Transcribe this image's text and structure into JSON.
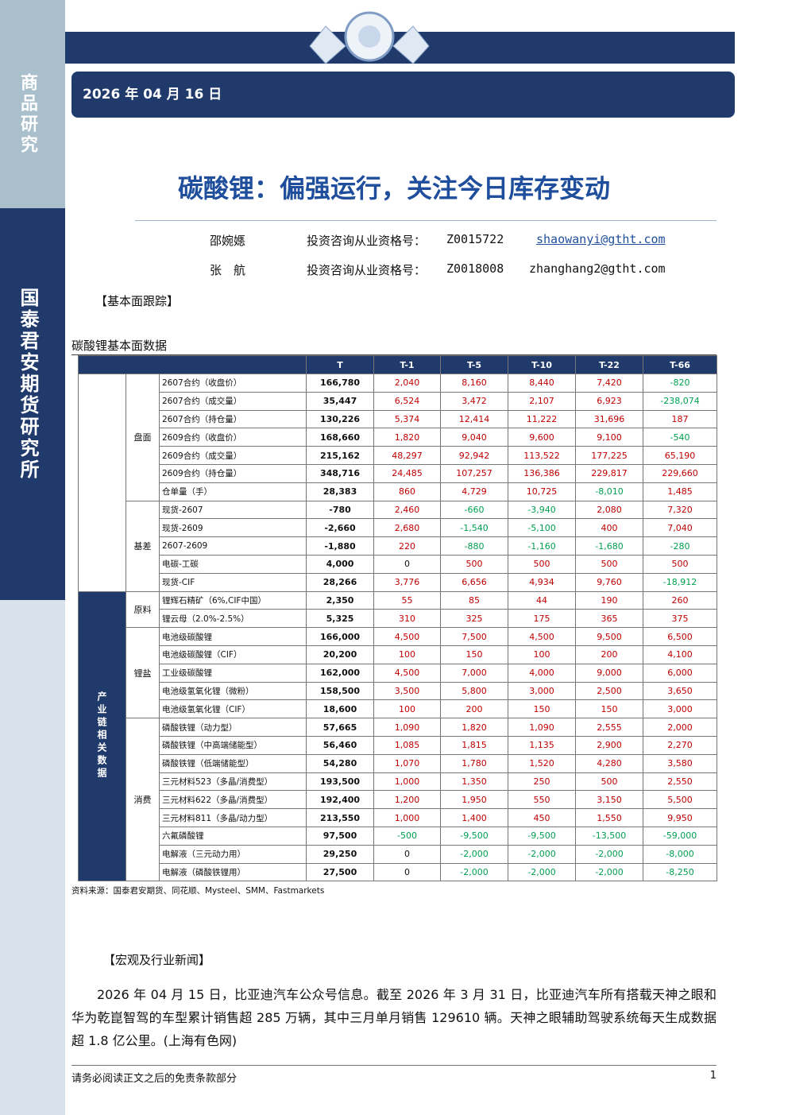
{
  "sidebar": {
    "top": "商品研究",
    "bottom": "国泰君安期货研究所"
  },
  "header": {
    "date": "2026 年 04 月 16 日",
    "title": "碳酸锂：偏强运行，关注今日库存变动"
  },
  "authors": [
    {
      "name": "邵婉嫕",
      "cert_label": "投资咨询从业资格号：",
      "cert": "Z0015722",
      "email": "shaowanyi@gtht.com"
    },
    {
      "name": "张　航",
      "cert_label": "投资咨询从业资格号：",
      "cert": "Z0018008",
      "email": "zhanghang2@gtht.com"
    }
  ],
  "section1": "【基本面跟踪】",
  "table_title": "碳酸锂基本面数据",
  "table": {
    "columns": [
      "T",
      "T-1",
      "T-5",
      "T-10",
      "T-22",
      "T-66"
    ],
    "groups": [
      {
        "subgroups": [
          {
            "label": "盘面",
            "rows": [
              [
                "2607合约（收盘价）",
                "166,780",
                "2,040",
                "8,160",
                "8,440",
                "7,420",
                "-820"
              ],
              [
                "2607合约（成交量）",
                "35,447",
                "6,524",
                "3,472",
                "2,107",
                "6,923",
                "-238,074"
              ],
              [
                "2607合约（持仓量）",
                "130,226",
                "5,374",
                "12,414",
                "11,222",
                "31,696",
                "187"
              ],
              [
                "2609合约（收盘价）",
                "168,660",
                "1,820",
                "9,040",
                "9,600",
                "9,100",
                "-540"
              ],
              [
                "2609合约（成交量）",
                "215,162",
                "48,297",
                "92,942",
                "113,522",
                "177,225",
                "65,190"
              ],
              [
                "2609合约（持仓量）",
                "348,716",
                "24,485",
                "107,257",
                "136,386",
                "229,817",
                "229,660"
              ],
              [
                "仓单量（手）",
                "28,383",
                "860",
                "4,729",
                "10,725",
                "-8,010",
                "1,485"
              ]
            ]
          },
          {
            "label": "基差",
            "rows": [
              [
                "现货-2607",
                "-780",
                "2,460",
                "-660",
                "-3,940",
                "2,080",
                "7,320"
              ],
              [
                "现货-2609",
                "-2,660",
                "2,680",
                "-1,540",
                "-5,100",
                "400",
                "7,040"
              ],
              [
                "2607-2609",
                "-1,880",
                "220",
                "-880",
                "-1,160",
                "-1,680",
                "-280"
              ],
              [
                "电碳-工碳",
                "4,000",
                "0",
                "500",
                "500",
                "500",
                "500"
              ],
              [
                "现货-CIF",
                "28,266",
                "3,776",
                "6,656",
                "4,934",
                "9,760",
                "-18,912"
              ]
            ]
          }
        ]
      },
      {
        "label": "产业链相关数据",
        "subgroups": [
          {
            "label": "原料",
            "rows": [
              [
                "锂辉石精矿（6%,CIF中国）",
                "2,350",
                "55",
                "85",
                "44",
                "190",
                "260"
              ],
              [
                "锂云母（2.0%-2.5%）",
                "5,325",
                "310",
                "325",
                "175",
                "365",
                "375"
              ]
            ]
          },
          {
            "label": "锂盐",
            "rows": [
              [
                "电池级碳酸锂",
                "166,000",
                "4,500",
                "7,500",
                "4,500",
                "9,500",
                "6,500"
              ],
              [
                "电池级碳酸锂（CIF）",
                "20,200",
                "100",
                "150",
                "100",
                "200",
                "4,100"
              ],
              [
                "工业级碳酸锂",
                "162,000",
                "4,500",
                "7,000",
                "4,000",
                "9,000",
                "6,000"
              ],
              [
                "电池级氢氧化锂（微粉）",
                "158,500",
                "3,500",
                "5,800",
                "3,000",
                "2,500",
                "3,650"
              ],
              [
                "电池级氢氧化锂（CIF）",
                "18,600",
                "100",
                "200",
                "150",
                "150",
                "3,000"
              ]
            ]
          },
          {
            "label": "消费",
            "rows": [
              [
                "磷酸铁锂（动力型）",
                "57,665",
                "1,090",
                "1,820",
                "1,090",
                "2,555",
                "2,000"
              ],
              [
                "磷酸铁锂（中高端储能型）",
                "56,460",
                "1,085",
                "1,815",
                "1,135",
                "2,900",
                "2,270"
              ],
              [
                "磷酸铁锂（低端储能型）",
                "54,280",
                "1,070",
                "1,780",
                "1,520",
                "4,280",
                "3,580"
              ],
              [
                "三元材料523（多晶/消费型）",
                "193,500",
                "1,000",
                "1,350",
                "250",
                "500",
                "2,550"
              ],
              [
                "三元材料622（多晶/消费型）",
                "192,400",
                "1,200",
                "1,950",
                "550",
                "3,150",
                "5,500"
              ],
              [
                "三元材料811（多晶/动力型）",
                "213,550",
                "1,000",
                "1,400",
                "450",
                "1,550",
                "9,950"
              ],
              [
                "六氟磷酸锂",
                "97,500",
                "-500",
                "-9,500",
                "-9,500",
                "-13,500",
                "-59,000"
              ],
              [
                "电解液（三元动力用）",
                "29,250",
                "0",
                "-2,000",
                "-2,000",
                "-2,000",
                "-8,000"
              ],
              [
                "电解液（磷酸铁锂用）",
                "27,500",
                "0",
                "-2,000",
                "-2,000",
                "-2,000",
                "-8,250"
              ]
            ]
          }
        ]
      }
    ]
  },
  "source": "资料来源：国泰君安期货、同花顺、Mysteel、SMM、Fastmarkets",
  "section2": "【宏观及行业新闻】",
  "paragraph": "2026 年 04 月 15 日，比亚迪汽车公众号信息。截至 2026 年 3 月 31 日，比亚迪汽车所有搭载天神之眼和华为乾崑智驾的车型累计销售超 285 万辆，其中三月单月销售 129610 辆。天神之眼辅助驾驶系统每天生成数据超 1.8 亿公里。(上海有色网)",
  "footer": {
    "note": "请务必阅读正文之后的免责条款部分",
    "page": "1"
  }
}
